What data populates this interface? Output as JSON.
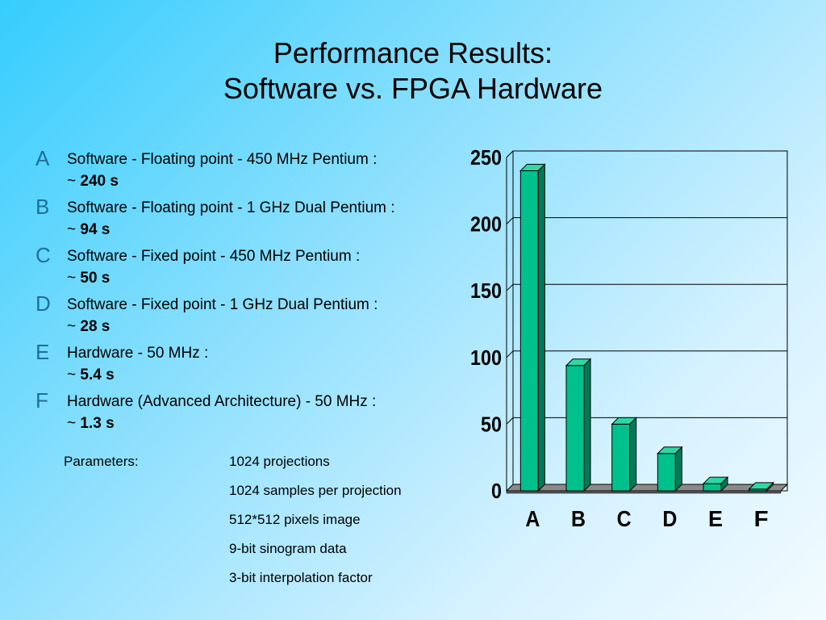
{
  "slide": {
    "title_line1": "Performance Results:",
    "title_line2": "Software vs. FPGA Hardware"
  },
  "items": [
    {
      "letter": "A",
      "desc": "Software - Floating point - 450 MHz Pentium :",
      "prefix": "~ ",
      "value": "240 s"
    },
    {
      "letter": "B",
      "desc": "Software - Floating point - 1 GHz Dual Pentium :",
      "prefix": "~ ",
      "value": "94 s"
    },
    {
      "letter": "C",
      "desc": "Software - Fixed point - 450 MHz Pentium :",
      "prefix": "~ ",
      "value": "50 s"
    },
    {
      "letter": "D",
      "desc": "Software - Fixed point - 1 GHz Dual Pentium :",
      "prefix": "~ ",
      "value": "28 s"
    },
    {
      "letter": "E",
      "desc": "Hardware - 50 MHz :",
      "prefix": "~ ",
      "value": "5.4 s"
    },
    {
      "letter": "F",
      "desc": "Hardware (Advanced Architecture) - 50 MHz :",
      "prefix": "~ ",
      "value": "1.3 s"
    }
  ],
  "parameters": {
    "label": "Parameters:",
    "list": [
      "1024 projections",
      "1024 samples per projection",
      "512*512 pixels image",
      "9-bit sinogram data",
      "3-bit interpolation factor"
    ]
  },
  "colors": {
    "bar_front": "#00c08b",
    "bar_side": "#007a58",
    "bar_top": "#2ed8a4",
    "floor": "#8a8a8a",
    "letter": "#1f6f9a"
  },
  "chart_data": {
    "type": "bar",
    "categories": [
      "A",
      "B",
      "C",
      "D",
      "E",
      "F"
    ],
    "values": [
      240,
      94,
      50,
      28,
      5.4,
      1.3
    ],
    "yticks": [
      0,
      50,
      100,
      150,
      200,
      250
    ],
    "ylim": [
      0,
      250
    ],
    "title": "",
    "xlabel": "",
    "ylabel": "",
    "grid": true,
    "style": "3d"
  }
}
